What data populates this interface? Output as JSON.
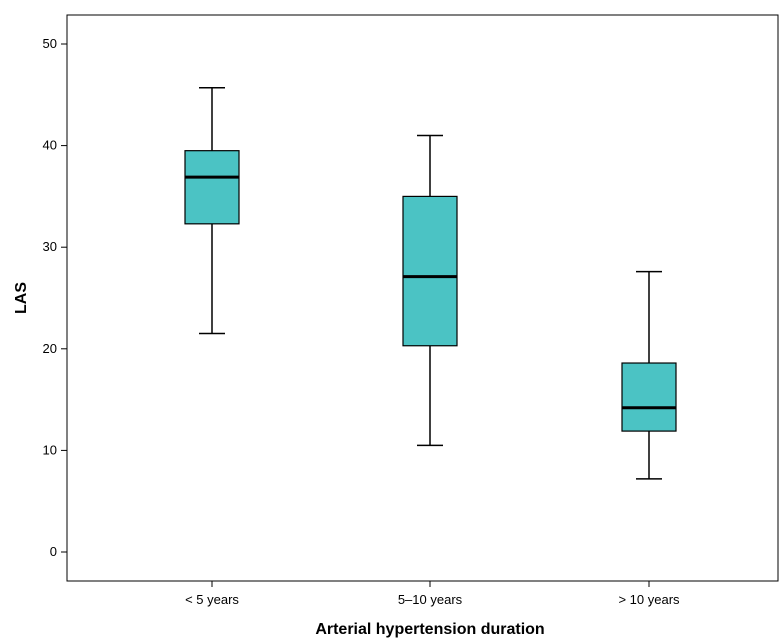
{
  "chart_data": {
    "type": "boxplot",
    "xlabel": "Arterial hypertension duration",
    "ylabel": "LAS",
    "ylim": [
      0,
      50
    ],
    "yticks": [
      0,
      10,
      20,
      30,
      40,
      50
    ],
    "grid": false,
    "categories": [
      "< 5 years",
      "5–10 years",
      "> 10 years"
    ],
    "boxes": [
      {
        "category": "< 5 years",
        "min": 21.5,
        "q1": 32.3,
        "median": 36.9,
        "q3": 39.5,
        "max": 45.7
      },
      {
        "category": "5–10 years",
        "min": 10.5,
        "q1": 20.3,
        "median": 27.1,
        "q3": 35.0,
        "max": 41.0
      },
      {
        "category": "> 10 years",
        "min": 7.2,
        "q1": 11.9,
        "median": 14.2,
        "q3": 18.6,
        "max": 27.6
      }
    ],
    "box_color": "#4BC3C4",
    "line_color": "#000000"
  }
}
